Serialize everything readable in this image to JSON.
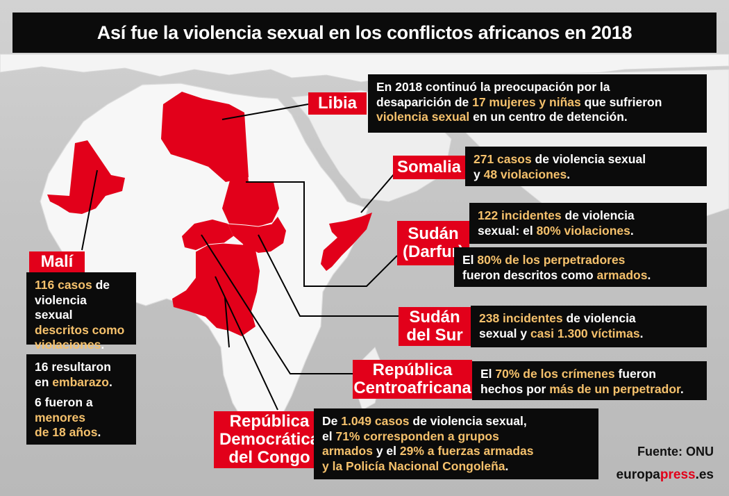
{
  "title": "Así fue la violencia sexual en los conflictos africanos en 2018",
  "colors": {
    "highlight": "#e2001a",
    "accent_text": "#f5c16c",
    "box_bg": "#0b0b0b",
    "land": "#ffffff",
    "sea": "#c4c4c4"
  },
  "regions": [
    {
      "id": "libia",
      "label": "Libia",
      "text": [
        [
          "En 2018 continuó la preocupación por la",
          ""
        ],
        [
          "desaparición de ",
          "",
          "17 mujeres y niñas",
          "hl",
          " que sufrieron",
          ""
        ],
        [
          "violencia sexual",
          "hl",
          " en un centro de detención.",
          ""
        ]
      ]
    },
    {
      "id": "somalia",
      "label": "Somalia",
      "text": [
        [
          "271 casos",
          "hl",
          " de violencia sexual",
          ""
        ],
        [
          "y ",
          "",
          "48 violaciones",
          "hl",
          ".",
          ""
        ]
      ]
    },
    {
      "id": "darfur",
      "label": "Sudán (Darfur)",
      "label_lines": [
        "Sudán",
        "(Darfur)"
      ],
      "text": [
        [
          "122 incidentes",
          "hl",
          " de violencia",
          ""
        ],
        [
          "sexual: el ",
          "",
          "80% violaciones",
          "hl",
          ".",
          ""
        ]
      ],
      "text2": [
        [
          "El ",
          "",
          "80% de los perpetradores",
          "hl"
        ],
        [
          "fueron descritos como ",
          "",
          "armados",
          "hl",
          ".",
          ""
        ]
      ]
    },
    {
      "id": "sudan-sur",
      "label": "Sudán del Sur",
      "label_lines": [
        "Sudán",
        "del Sur"
      ],
      "text": [
        [
          "238 incidentes",
          "hl",
          " de violencia",
          ""
        ],
        [
          "sexual y ",
          "",
          "casi 1.300 víctimas",
          "hl",
          ".",
          ""
        ]
      ]
    },
    {
      "id": "rca",
      "label": "República Centroafricana",
      "label_lines": [
        "República",
        "Centroafricana"
      ],
      "text": [
        [
          "El ",
          "",
          "70% de los crímenes",
          "hl",
          " fueron",
          ""
        ],
        [
          "hechos por ",
          "",
          "más de un perpetrador",
          "hl",
          ".",
          ""
        ]
      ]
    },
    {
      "id": "rdc",
      "label": "República Democrática del Congo",
      "label_lines": [
        "República",
        "Democrática",
        "del Congo"
      ],
      "text": [
        [
          "De ",
          "",
          "1.049 casos",
          "hl",
          " de violencia sexual,",
          ""
        ],
        [
          "el ",
          "",
          "71% corresponden a grupos",
          "hl"
        ],
        [
          "armados",
          "hl",
          " y el ",
          "",
          "29% a fuerzas armadas",
          "hl"
        ],
        [
          "y la Policía Nacional Congoleña",
          "hl",
          ".",
          ""
        ]
      ]
    },
    {
      "id": "mali",
      "label": "Malí",
      "text": [
        [
          "116 casos",
          "hl",
          " de",
          ""
        ],
        [
          "violencia sexual",
          ""
        ],
        [
          "descritos como",
          "hl"
        ],
        [
          "violaciones",
          "hl",
          ".",
          ""
        ]
      ],
      "text2": [
        [
          "16",
          "",
          " resultaron",
          ""
        ],
        [
          "en ",
          "",
          "embarazo",
          "hl",
          ".",
          ""
        ]
      ],
      "text3": [
        [
          "6",
          "",
          " fueron a",
          ""
        ],
        [
          "menores",
          "hl"
        ],
        [
          "de 18 años",
          "hl",
          ".",
          ""
        ]
      ]
    }
  ],
  "source": "Fuente: ONU",
  "brand": {
    "part1": "europa",
    "part2": "press",
    "part3": ".es"
  }
}
